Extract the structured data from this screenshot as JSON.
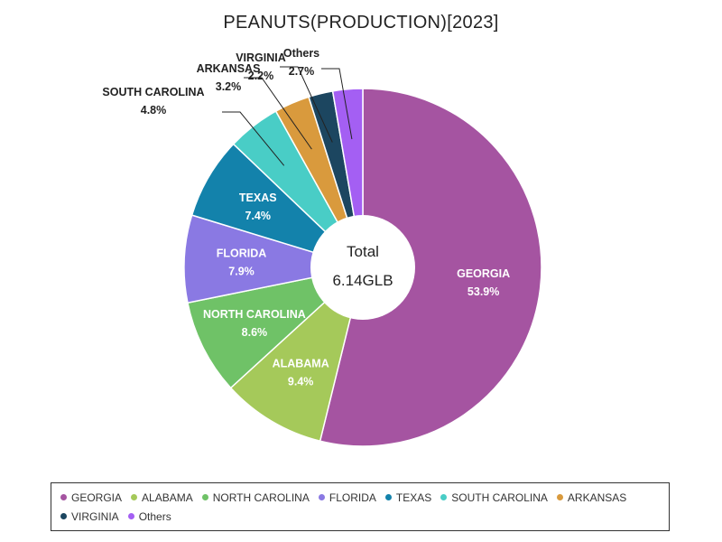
{
  "chart_data": {
    "type": "pie",
    "title": "PEANUTS(PRODUCTION)[2023]",
    "center_label": "Total",
    "center_value": "6.14GLB",
    "series": [
      {
        "name": "GEORGIA",
        "value": 53.9,
        "label": "53.9%",
        "color": "#a554a1"
      },
      {
        "name": "ALABAMA",
        "value": 9.4,
        "label": "9.4%",
        "color": "#a5c95a"
      },
      {
        "name": "NORTH CAROLINA",
        "value": 8.6,
        "label": "8.6%",
        "color": "#6fc267"
      },
      {
        "name": "FLORIDA",
        "value": 7.9,
        "label": "7.9%",
        "color": "#8a79e3"
      },
      {
        "name": "TEXAS",
        "value": 7.4,
        "label": "7.4%",
        "color": "#1382ab"
      },
      {
        "name": "SOUTH CAROLINA",
        "value": 4.8,
        "label": "4.8%",
        "color": "#49cdc6"
      },
      {
        "name": "ARKANSAS",
        "value": 3.2,
        "label": "3.2%",
        "color": "#d99a3d"
      },
      {
        "name": "VIRGINIA",
        "value": 2.2,
        "label": "2.2%",
        "color": "#1c4660"
      },
      {
        "name": "Others",
        "value": 2.7,
        "label": "2.7%",
        "color": "#a45ff3"
      }
    ]
  }
}
